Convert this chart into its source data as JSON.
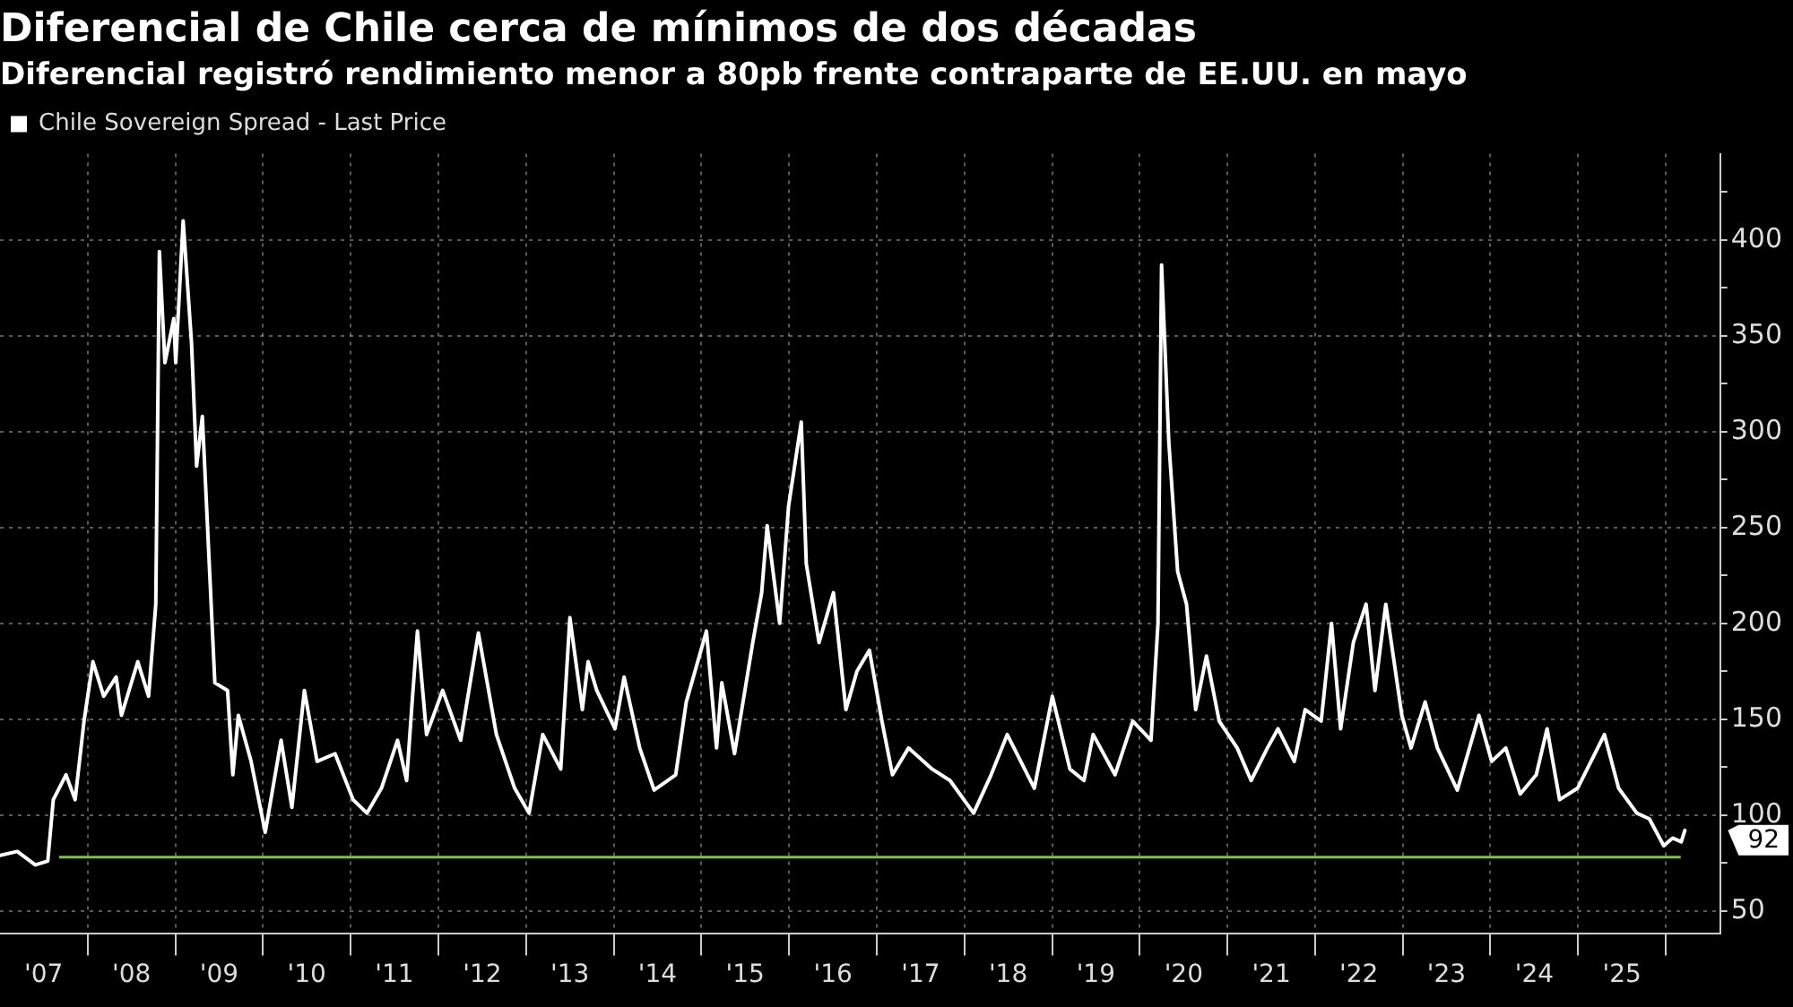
{
  "chart_data": {
    "type": "line",
    "title": "Diferencial de Chile cerca de mínimos de dos décadas",
    "subtitle": "Diferencial registró rendimiento menor a 80pb frente contraparte de EE.UU. en mayo",
    "x": [
      "2007-01-01",
      "2007-03-14",
      "2007-05-28",
      "2007-07-19",
      "2007-08-11",
      "2007-10-03",
      "2007-11-10",
      "2007-12-17",
      "2008-01-23",
      "2008-03-08",
      "2008-04-29",
      "2008-05-21",
      "2008-07-28",
      "2008-09-11",
      "2008-10-11",
      "2008-10-26",
      "2008-11-18",
      "2008-12-25",
      "2009-01-02",
      "2009-02-02",
      "2009-03-09",
      "2009-03-30",
      "2009-04-23",
      "2009-06-14",
      "2009-08-06",
      "2009-08-28",
      "2009-09-20",
      "2009-11-12",
      "2010-01-10",
      "2010-03-17",
      "2010-05-01",
      "2010-06-22",
      "2010-08-14",
      "2010-10-28",
      "2011-01-11",
      "2011-03-10",
      "2011-05-09",
      "2011-07-15",
      "2011-08-22",
      "2011-09-14",
      "2011-10-06",
      "2011-11-13",
      "2012-01-19",
      "2012-04-03",
      "2012-06-16",
      "2012-08-30",
      "2012-11-14",
      "2013-01-13",
      "2013-03-11",
      "2013-05-25",
      "2013-07-02",
      "2013-08-23",
      "2013-09-16",
      "2013-10-22",
      "2014-01-06",
      "2014-02-13",
      "2014-04-19",
      "2014-06-18",
      "2014-09-16",
      "2014-10-30",
      "2015-01-22",
      "2015-03-05",
      "2015-03-27",
      "2015-05-19",
      "2015-08-03",
      "2015-09-09",
      "2015-10-02",
      "2015-11-23",
      "2015-12-30",
      "2016-02-21",
      "2016-03-13",
      "2016-05-05",
      "2016-07-04",
      "2016-08-25",
      "2016-10-10",
      "2016-12-01",
      "2017-01-22",
      "2017-03-07",
      "2017-05-13",
      "2017-08-19",
      "2017-11-02",
      "2018-02-08",
      "2018-04-22",
      "2018-06-28",
      "2018-10-19",
      "2019-01-02",
      "2019-03-16",
      "2019-05-14",
      "2019-06-21",
      "2019-09-20",
      "2019-12-03",
      "2020-02-17",
      "2020-03-17",
      "2020-04-01",
      "2020-05-01",
      "2020-06-07",
      "2020-07-14",
      "2020-08-21",
      "2020-10-05",
      "2020-11-27",
      "2021-02-10",
      "2021-04-09",
      "2021-06-16",
      "2021-07-30",
      "2021-10-06",
      "2021-11-20",
      "2022-01-26",
      "2022-03-10",
      "2022-04-17",
      "2022-06-09",
      "2022-08-01",
      "2022-09-07",
      "2022-10-22",
      "2022-12-28",
      "2023-02-04",
      "2023-04-04",
      "2023-05-25",
      "2023-08-16",
      "2023-11-14",
      "2024-01-06",
      "2024-03-05",
      "2024-05-04",
      "2024-07-10",
      "2024-08-24",
      "2024-10-15",
      "2024-12-29",
      "2025-04-20",
      "2025-06-18",
      "2025-09-02",
      "2025-10-24",
      "2025-12-23",
      "2026-01-29",
      "2026-03-06",
      "2026-03-21"
    ],
    "series": [
      {
        "name": "Chile Sovereign Spread - Last Price",
        "color": "#ffffff",
        "values": [
          79,
          81,
          74,
          76,
          108,
          121,
          108,
          149,
          180,
          162,
          172,
          152,
          180,
          162,
          210,
          394,
          336,
          359,
          336,
          410,
          346,
          282,
          308,
          169,
          165,
          121,
          152,
          128,
          91,
          139,
          104,
          165,
          128,
          132,
          108,
          101,
          114,
          139,
          118,
          159,
          196,
          142,
          165,
          139,
          195,
          142,
          114,
          101,
          142,
          124,
          203,
          155,
          180,
          165,
          145,
          172,
          135,
          113,
          121,
          159,
          196,
          135,
          169,
          132,
          190,
          216,
          251,
          200,
          261,
          305,
          231,
          190,
          216,
          155,
          175,
          186,
          149,
          121,
          135,
          124,
          118,
          101,
          121,
          142,
          114,
          162,
          124,
          118,
          142,
          121,
          149,
          139,
          200,
          387,
          295,
          227,
          210,
          155,
          183,
          149,
          135,
          118,
          135,
          145,
          128,
          155,
          149,
          200,
          145,
          190,
          210,
          165,
          210,
          152,
          135,
          159,
          135,
          113,
          152,
          128,
          135,
          111,
          121,
          145,
          108,
          114,
          142,
          114,
          101,
          98,
          84,
          88,
          86,
          92
        ]
      }
    ],
    "xlim": [
      "2007-01-01",
      "2026-08-15"
    ],
    "xticks": [
      {
        "value": "2007-07-02",
        "label": "'07"
      },
      {
        "value": "2008-01-01",
        "label": null
      },
      {
        "value": "2008-07-02",
        "label": "'08"
      },
      {
        "value": "2009-01-01",
        "label": null
      },
      {
        "value": "2009-07-02",
        "label": "'09"
      },
      {
        "value": "2010-01-01",
        "label": null
      },
      {
        "value": "2010-07-02",
        "label": "'10"
      },
      {
        "value": "2011-01-01",
        "label": null
      },
      {
        "value": "2011-07-02",
        "label": "'11"
      },
      {
        "value": "2012-01-01",
        "label": null
      },
      {
        "value": "2012-07-02",
        "label": "'12"
      },
      {
        "value": "2013-01-01",
        "label": null
      },
      {
        "value": "2013-07-02",
        "label": "'13"
      },
      {
        "value": "2014-01-01",
        "label": null
      },
      {
        "value": "2014-07-02",
        "label": "'14"
      },
      {
        "value": "2015-01-01",
        "label": null
      },
      {
        "value": "2015-07-02",
        "label": "'15"
      },
      {
        "value": "2016-01-01",
        "label": null
      },
      {
        "value": "2016-07-02",
        "label": "'16"
      },
      {
        "value": "2017-01-01",
        "label": null
      },
      {
        "value": "2017-07-02",
        "label": "'17"
      },
      {
        "value": "2018-01-01",
        "label": null
      },
      {
        "value": "2018-07-02",
        "label": "'18"
      },
      {
        "value": "2019-01-01",
        "label": null
      },
      {
        "value": "2019-07-02",
        "label": "'19"
      },
      {
        "value": "2020-01-01",
        "label": null
      },
      {
        "value": "2020-07-02",
        "label": "'20"
      },
      {
        "value": "2021-01-01",
        "label": null
      },
      {
        "value": "2021-07-02",
        "label": "'21"
      },
      {
        "value": "2022-01-01",
        "label": null
      },
      {
        "value": "2022-07-02",
        "label": "'22"
      },
      {
        "value": "2023-01-01",
        "label": null
      },
      {
        "value": "2023-07-02",
        "label": "'23"
      },
      {
        "value": "2024-01-01",
        "label": null
      },
      {
        "value": "2024-07-02",
        "label": "'24"
      },
      {
        "value": "2025-01-01",
        "label": null
      },
      {
        "value": "2025-07-02",
        "label": "'25"
      },
      {
        "value": "2026-01-01",
        "label": null
      }
    ],
    "ylim": [
      38,
      445
    ],
    "yticks": [
      50,
      {
        "value": 75,
        "label": null
      },
      100,
      {
        "value": 125,
        "label": null
      },
      150,
      {
        "value": 175,
        "label": null
      },
      200,
      {
        "value": 225,
        "label": null
      },
      250,
      {
        "value": 275,
        "label": null
      },
      300,
      {
        "value": 325,
        "label": null
      },
      350,
      {
        "value": 375,
        "label": null
      },
      400,
      {
        "value": 425,
        "label": null
      }
    ],
    "ref_lines": [
      {
        "axis": "y",
        "value": 78,
        "color": "#7dc242"
      }
    ],
    "annotations": [
      {
        "text": "92",
        "x": "2026-03-21",
        "y": 92
      }
    ],
    "grid": true,
    "legend": "top left",
    "marker": "none",
    "line_style": "solid"
  }
}
